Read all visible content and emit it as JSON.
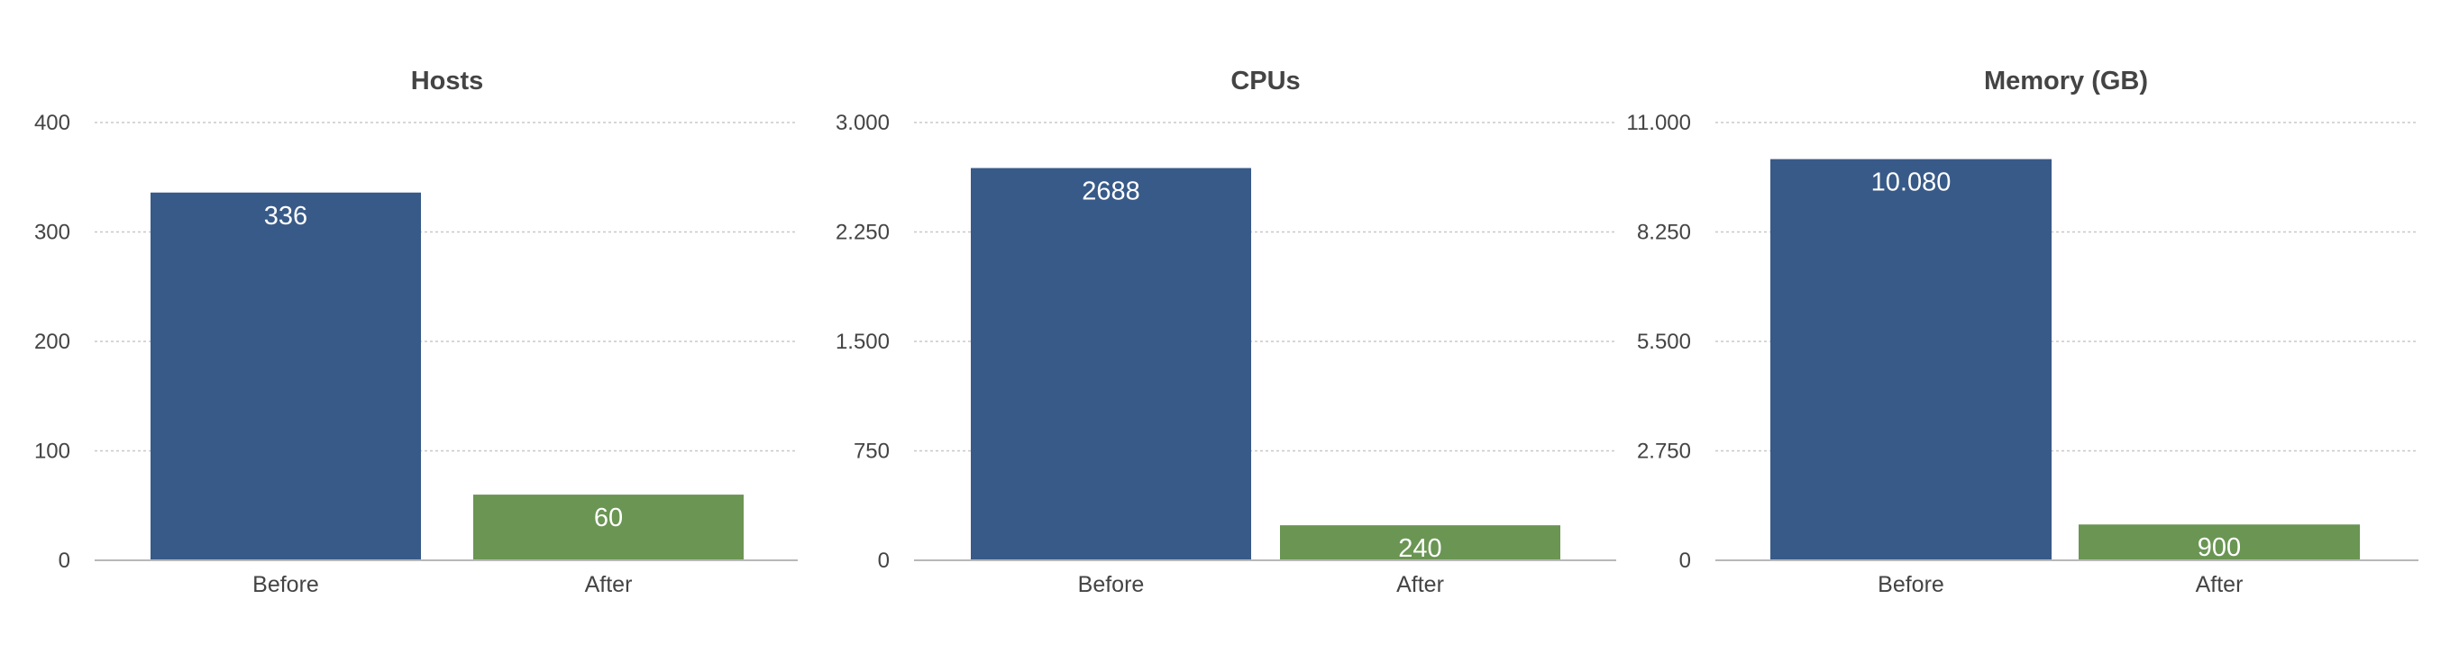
{
  "chart_data": [
    {
      "type": "bar",
      "title": "Hosts",
      "categories": [
        "Before",
        "After"
      ],
      "values": [
        336,
        60
      ],
      "value_labels": [
        "336",
        "60"
      ],
      "ylim": [
        0,
        400
      ],
      "yticks": [
        0,
        100,
        200,
        300,
        400
      ],
      "ytick_labels": [
        "0",
        "100",
        "200",
        "300",
        "400"
      ],
      "grid": true
    },
    {
      "type": "bar",
      "title": "CPUs",
      "categories": [
        "Before",
        "After"
      ],
      "values": [
        2688,
        240
      ],
      "value_labels": [
        "2688",
        "240"
      ],
      "ylim": [
        0,
        3000
      ],
      "yticks": [
        0,
        750,
        1500,
        2250,
        3000
      ],
      "ytick_labels": [
        "0",
        "750",
        "1.500",
        "2.250",
        "3.000"
      ],
      "grid": true
    },
    {
      "type": "bar",
      "title": "Memory (GB)",
      "categories": [
        "Before",
        "After"
      ],
      "values": [
        10080,
        900
      ],
      "value_labels": [
        "10.080",
        "900"
      ],
      "ylim": [
        0,
        11000
      ],
      "yticks": [
        0,
        2750,
        5500,
        8250,
        11000
      ],
      "ytick_labels": [
        "0",
        "2.750",
        "5.500",
        "8.250",
        "11.000"
      ],
      "grid": true
    }
  ],
  "colors": {
    "before": "#385a88",
    "after": "#6a9553"
  }
}
